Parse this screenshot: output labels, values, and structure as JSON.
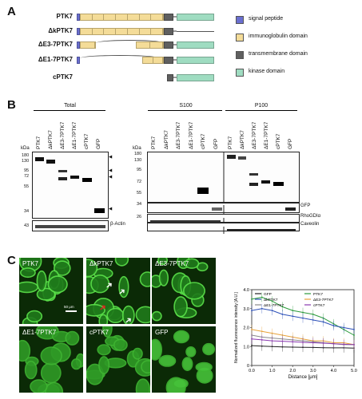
{
  "panels": {
    "a": "A",
    "b": "B",
    "c": "C"
  },
  "constructs": [
    {
      "name": "PTK7"
    },
    {
      "name": "ΔkPTK7"
    },
    {
      "name": "ΔE3-7PTK7"
    },
    {
      "name": "ΔE1-7PTK7"
    },
    {
      "name": "cPTK7"
    }
  ],
  "legend": [
    {
      "label": "signal peptide",
      "color": "#6a6fd0"
    },
    {
      "label": "immunoglobulin domain",
      "color": "#f4dc98"
    },
    {
      "label": "transmembrane domain",
      "color": "#5f5f5f"
    },
    {
      "label": "kinase domain",
      "color": "#9fdcc1"
    }
  ],
  "blot": {
    "total_title": "Total",
    "s100_title": "S100",
    "p100_title": "P100",
    "kda": "kDa",
    "lanes": [
      "PTK7",
      "ΔkPTK7",
      "ΔE3-7PTK7",
      "ΔE1-7PTK7",
      "cPTK7",
      "GFP"
    ],
    "markers": [
      "180",
      "130",
      "95",
      "72",
      "55",
      "34",
      "43",
      "26"
    ],
    "gfp_label": "GFP",
    "actin_label": "β-Actin",
    "rhogdi_label": "RhoGDIα",
    "caveolin_label": "Caveolin",
    "arrowhead": "◀"
  },
  "micrographs": [
    {
      "label": "PTK7"
    },
    {
      "label": "ΔkPTK7"
    },
    {
      "label": "ΔE3-7PTK7"
    },
    {
      "label": "ΔE1-7PTK7"
    },
    {
      "label": "cPTK7"
    },
    {
      "label": "GFP"
    }
  ],
  "scale_bar": "50 μm",
  "chart_data": {
    "type": "line",
    "xlabel": "Distance [μm]",
    "ylabel": "Normalized fluorescence intensity [A.U.]",
    "xlim": [
      0,
      5.0
    ],
    "ylim": [
      0,
      4.0
    ],
    "x_ticks": [
      "0.0",
      "1.0",
      "2.0",
      "3.0",
      "4.0",
      "5.0"
    ],
    "y_ticks": [
      "0",
      "1.0",
      "2.0",
      "3.0",
      "4.0"
    ],
    "series": [
      {
        "name": "GFP",
        "color": "#222222",
        "x": [
          0,
          0.5,
          1,
          1.5,
          2,
          2.5,
          3,
          3.5,
          4,
          4.5,
          5
        ],
        "values": [
          1.05,
          1.02,
          1.0,
          0.98,
          0.97,
          0.96,
          0.95,
          0.94,
          0.93,
          0.93,
          0.92
        ]
      },
      {
        "name": "PTK7",
        "color": "#2a9a3a",
        "x": [
          0,
          0.5,
          1,
          1.5,
          2,
          2.5,
          3,
          3.5,
          4,
          4.5,
          5
        ],
        "values": [
          3.5,
          3.6,
          3.4,
          3.1,
          2.9,
          2.8,
          2.7,
          2.5,
          2.2,
          1.9,
          1.6
        ]
      },
      {
        "name": "ΔkPTK7",
        "color": "#2b4fb8",
        "x": [
          0,
          0.5,
          1,
          1.5,
          2,
          2.5,
          3,
          3.5,
          4,
          4.5,
          5
        ],
        "values": [
          2.9,
          3.0,
          2.9,
          2.7,
          2.6,
          2.5,
          2.4,
          2.3,
          2.1,
          2.0,
          1.9
        ]
      },
      {
        "name": "ΔE3-7PTK7",
        "color": "#e8a23a",
        "x": [
          0,
          0.5,
          1,
          1.5,
          2,
          2.5,
          3,
          3.5,
          4,
          4.5,
          5
        ],
        "values": [
          1.9,
          1.8,
          1.7,
          1.6,
          1.5,
          1.4,
          1.3,
          1.3,
          1.2,
          1.2,
          1.1
        ]
      },
      {
        "name": "ΔE1-7PTK7",
        "color": "#8a8a8a",
        "x": [
          0,
          0.5,
          1,
          1.5,
          2,
          2.5,
          3,
          3.5,
          4,
          4.5,
          5
        ],
        "values": [
          1.6,
          1.5,
          1.45,
          1.4,
          1.35,
          1.3,
          1.25,
          1.2,
          1.15,
          1.1,
          1.1
        ]
      },
      {
        "name": "cPTK7",
        "color": "#8a3ab0",
        "x": [
          0,
          0.5,
          1,
          1.5,
          2,
          2.5,
          3,
          3.5,
          4,
          4.5,
          5
        ],
        "values": [
          1.4,
          1.35,
          1.3,
          1.28,
          1.25,
          1.22,
          1.2,
          1.18,
          1.15,
          1.12,
          1.1
        ]
      }
    ]
  }
}
